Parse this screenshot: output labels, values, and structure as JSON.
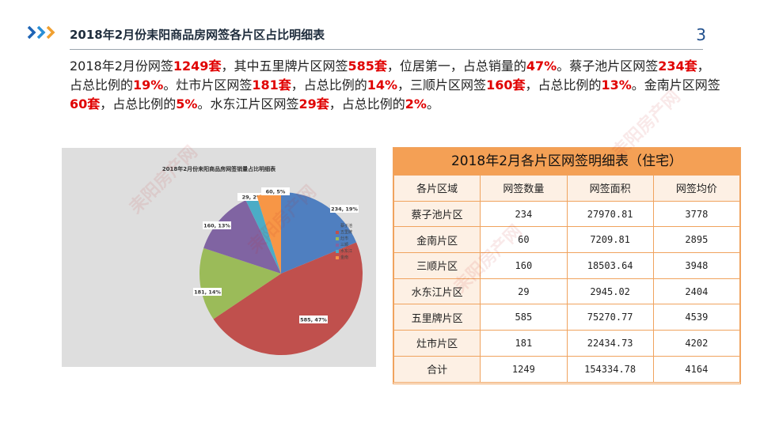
{
  "header": {
    "title": "2018年2月份耒阳商品房网签各片区占比明细表",
    "page_number": "3"
  },
  "summary": {
    "segments": [
      {
        "text": "2018年2月份网签",
        "hl": false
      },
      {
        "text": "1249套",
        "hl": true
      },
      {
        "text": "，其中五里牌片区网签",
        "hl": false
      },
      {
        "text": "585套",
        "hl": true
      },
      {
        "text": "，位居第一，占总销量的",
        "hl": false
      },
      {
        "text": "47%",
        "hl": true
      },
      {
        "text": "。蔡子池片区网签",
        "hl": false
      },
      {
        "text": "234套",
        "hl": true
      },
      {
        "text": "，占总比例的",
        "hl": false
      },
      {
        "text": "19%",
        "hl": true
      },
      {
        "text": "。灶市片区网签",
        "hl": false
      },
      {
        "text": "181套",
        "hl": true
      },
      {
        "text": "，占总比例的",
        "hl": false
      },
      {
        "text": "14%",
        "hl": true
      },
      {
        "text": "，三顺片区网签",
        "hl": false
      },
      {
        "text": "160套",
        "hl": true
      },
      {
        "text": "，占总比例的",
        "hl": false
      },
      {
        "text": "13%",
        "hl": true
      },
      {
        "text": "。金南片区网签",
        "hl": false
      },
      {
        "text": "60套",
        "hl": true
      },
      {
        "text": "，占总比例的",
        "hl": false
      },
      {
        "text": "5%",
        "hl": true
      },
      {
        "text": "。水东江片区网签",
        "hl": false
      },
      {
        "text": "29套",
        "hl": true
      },
      {
        "text": "，占总比例的",
        "hl": false
      },
      {
        "text": "2%",
        "hl": true
      },
      {
        "text": "。",
        "hl": false
      }
    ]
  },
  "chart_data": {
    "type": "pie",
    "title": "2018年2月份耒阳商品房网签销量占比明细表",
    "legend_position": "right",
    "slices": [
      {
        "name": "蔡子池",
        "value": 234,
        "label": "234, 19%",
        "color": "#4f7fc0"
      },
      {
        "name": "五里牌",
        "value": 585,
        "label": "585, 47%",
        "color": "#c0504d"
      },
      {
        "name": "灶市",
        "value": 181,
        "label": "181, 14%",
        "color": "#9bbb59"
      },
      {
        "name": "三顺",
        "value": 160,
        "label": "160, 13%",
        "color": "#8064a2"
      },
      {
        "name": "水东江",
        "value": 29,
        "label": "29, 2%",
        "color": "#4bacc6"
      },
      {
        "name": "金南",
        "value": 60,
        "label": "60, 5%",
        "color": "#f79646"
      }
    ]
  },
  "table": {
    "title": "2018年2月各片区网签明细表（住宅）",
    "headers": [
      "各片区域",
      "网签数量",
      "网签面积",
      "网签均价"
    ],
    "rows": [
      [
        "蔡子池片区",
        "234",
        "27970.81",
        "3778"
      ],
      [
        "金南片区",
        "60",
        "7209.81",
        "2895"
      ],
      [
        "三顺片区",
        "160",
        "18503.64",
        "3948"
      ],
      [
        "水东江片区",
        "29",
        "2945.02",
        "2404"
      ],
      [
        "五里牌片区",
        "585",
        "75270.77",
        "4539"
      ],
      [
        "灶市片区",
        "181",
        "22434.73",
        "4202"
      ],
      [
        "合计",
        "1249",
        "154334.78",
        "4164"
      ]
    ]
  },
  "watermark": {
    "text": "耒阳房产网",
    "color": "#c82828"
  }
}
